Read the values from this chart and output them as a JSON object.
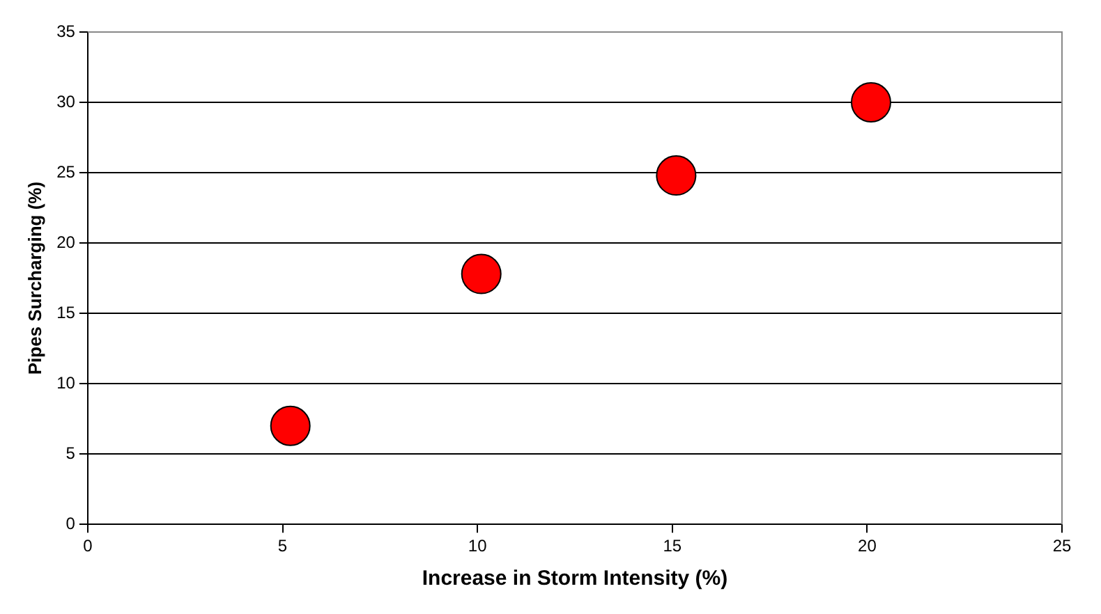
{
  "chart_data": {
    "type": "scatter",
    "xlabel": "Increase in Storm Intensity (%)",
    "ylabel": "Pipes Surcharging (%)",
    "x": [
      5.2,
      10.1,
      15.1,
      20.1
    ],
    "series": [
      {
        "color": "#ff0000",
        "values": [
          7,
          17.8,
          24.8,
          30
        ]
      }
    ],
    "xlim": [
      0,
      25
    ],
    "xticks": [
      0,
      5,
      10,
      15,
      20,
      25
    ],
    "ylim": [
      0,
      35
    ],
    "yticks": [
      0,
      5,
      10,
      15,
      20,
      25,
      30,
      35
    ],
    "grid": "y",
    "legend": false,
    "marker": "circle"
  }
}
